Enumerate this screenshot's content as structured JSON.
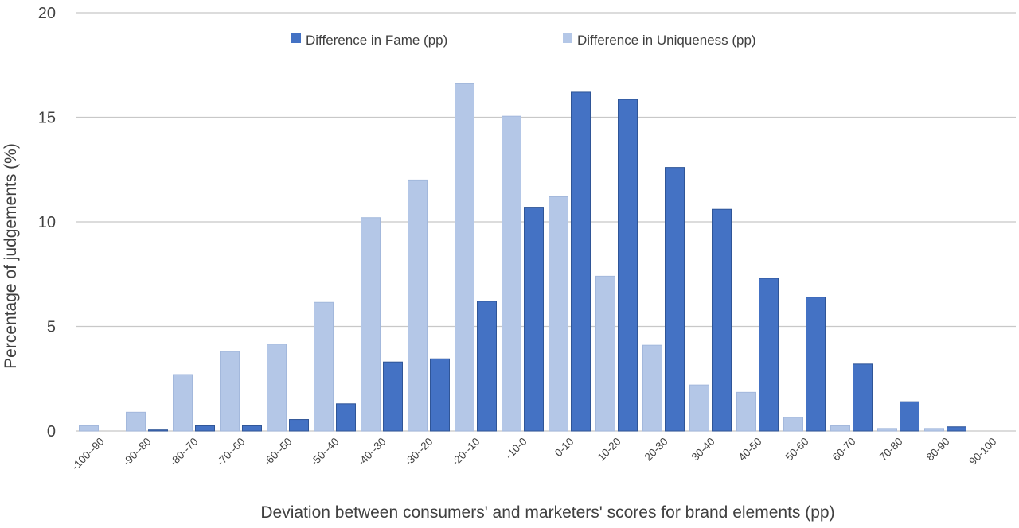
{
  "chart_data": {
    "type": "bar",
    "title": "",
    "xlabel": "Deviation between consumers' and marketers' scores for brand elements (pp)",
    "ylabel": "Percentage of judgements (%)",
    "ylim": [
      0,
      20
    ],
    "yticks": [
      0,
      5,
      10,
      15,
      20
    ],
    "grid": true,
    "legend_position": "top",
    "categories": [
      "-100--90",
      "-90--80",
      "-80--70",
      "-70--60",
      "-60--50",
      "-50--40",
      "-40--30",
      "-30--20",
      "-20--10",
      "-10-0",
      "0-10",
      "10-20",
      "20-30",
      "30-40",
      "40-50",
      "50-60",
      "60-70",
      "70-80",
      "80-90",
      "90-100"
    ],
    "series": [
      {
        "name": "Difference in Fame (pp)",
        "color": "#4472c4",
        "values": [
          0.0,
          0.05,
          0.25,
          0.25,
          0.55,
          1.3,
          3.3,
          3.45,
          6.2,
          10.7,
          16.2,
          15.85,
          12.6,
          10.6,
          7.3,
          6.4,
          3.2,
          1.4,
          0.2,
          0.0
        ]
      },
      {
        "name": "Difference in Uniqueness (pp)",
        "color": "#b4c7e7",
        "values": [
          0.25,
          0.9,
          2.7,
          3.8,
          4.15,
          6.15,
          10.2,
          12.0,
          16.6,
          15.05,
          11.2,
          7.4,
          4.1,
          2.2,
          1.85,
          0.65,
          0.25,
          0.12,
          0.12,
          0.0
        ]
      }
    ]
  }
}
